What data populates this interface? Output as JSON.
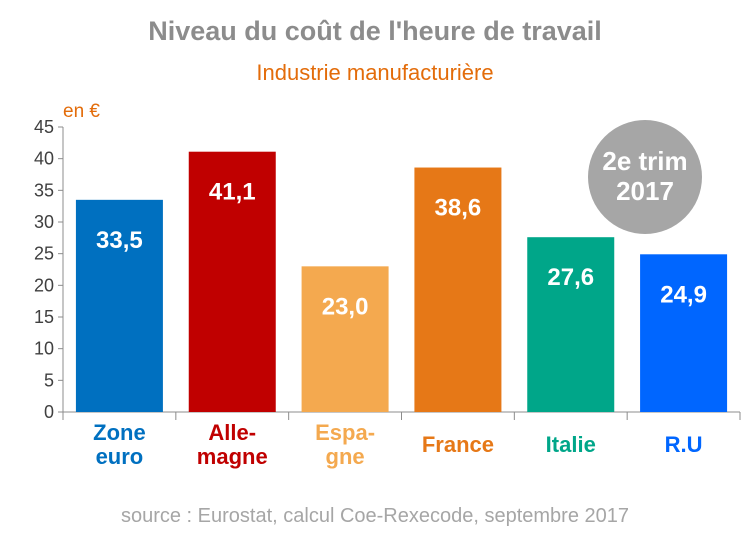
{
  "title": "Niveau du coût de l'heure de travail",
  "subtitle": "Industrie manufacturière",
  "unit_label": "en €",
  "badge": {
    "line1": "2e trim",
    "line2": "2017"
  },
  "source": "source : Eurostat, calcul Coe-Rexecode, septembre 2017",
  "chart_data": {
    "type": "bar",
    "categories": [
      [
        "Zone",
        "euro"
      ],
      [
        "Alle-",
        "magne"
      ],
      [
        "Espa-",
        "gne"
      ],
      [
        "France"
      ],
      [
        "Italie"
      ],
      [
        "R.U"
      ]
    ],
    "values": [
      33.5,
      41.1,
      23.0,
      38.6,
      27.6,
      24.9
    ],
    "value_labels": [
      "33,5",
      "41,1",
      "23,0",
      "38,6",
      "27,6",
      "24,9"
    ],
    "colors": [
      "#0070c0",
      "#c00000",
      "#f4a94f",
      "#e67817",
      "#00a689",
      "#0066ff"
    ],
    "yticks": [
      0,
      5,
      10,
      15,
      20,
      25,
      30,
      35,
      40,
      45
    ],
    "ylim": [
      0,
      45
    ],
    "grid": false
  }
}
